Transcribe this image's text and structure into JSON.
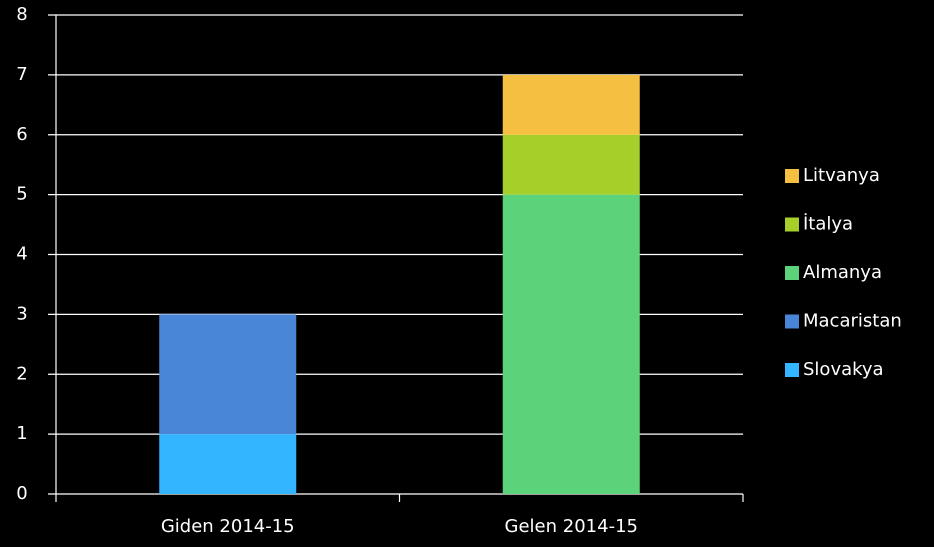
{
  "chart_data": {
    "type": "stacked_bar",
    "categories": [
      "Giden 2014-15",
      "Gelen 2014-15"
    ],
    "series": [
      {
        "name": "Slovakya",
        "color": "#33b5ff",
        "values": [
          1,
          0
        ]
      },
      {
        "name": "Macaristan",
        "color": "#4a86d8",
        "values": [
          2,
          0
        ]
      },
      {
        "name": "Almanya",
        "color": "#5cd27a",
        "values": [
          0,
          5
        ]
      },
      {
        "name": "İtalya",
        "color": "#a6cf2a",
        "values": [
          0,
          1
        ]
      },
      {
        "name": "Litvanya",
        "color": "#f5c042",
        "values": [
          0,
          1
        ]
      }
    ],
    "ylim": [
      0,
      8
    ],
    "yticks": [
      0,
      1,
      2,
      3,
      4,
      5,
      6,
      7,
      8
    ],
    "grid": true,
    "legend": "right"
  }
}
